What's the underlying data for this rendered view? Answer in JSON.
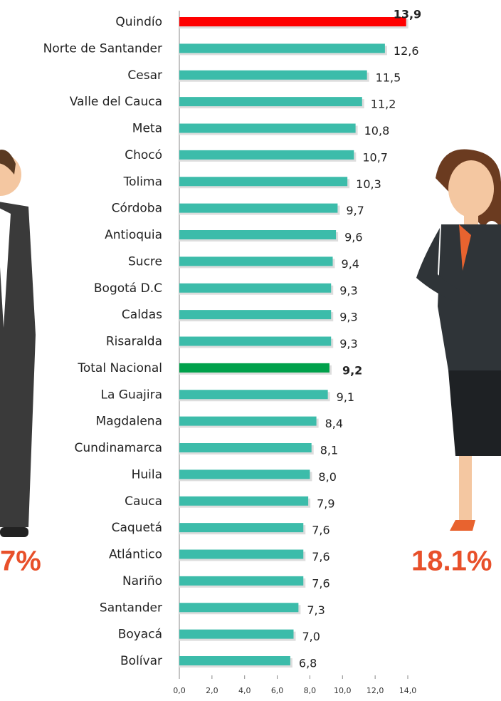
{
  "chart_data": {
    "type": "bar",
    "orientation": "horizontal",
    "categories": [
      "Quindío",
      "Norte de Santander",
      "Cesar",
      "Valle del Cauca",
      "Meta",
      "Chocó",
      "Tolima",
      "Córdoba",
      "Antioquia",
      "Sucre",
      "Bogotá D.C",
      "Caldas",
      "Risaralda",
      "Total Nacional",
      "La Guajira",
      "Magdalena",
      "Cundinamarca",
      "Huila",
      "Cauca",
      "Caquetá",
      "Atlántico",
      "Nariño",
      "Santander",
      "Boyacá",
      "Bolívar"
    ],
    "values": [
      13.9,
      12.6,
      11.5,
      11.2,
      10.8,
      10.7,
      10.3,
      9.7,
      9.6,
      9.4,
      9.3,
      9.3,
      9.3,
      9.2,
      9.1,
      8.4,
      8.1,
      8.0,
      7.9,
      7.6,
      7.6,
      7.6,
      7.3,
      7.0,
      6.8
    ],
    "value_labels": [
      "13,9",
      "12,6",
      "11,5",
      "11,2",
      "10,8",
      "10,7",
      "10,3",
      "9,7",
      "9,6",
      "9,4",
      "9,3",
      "9,3",
      "9,3",
      "9,2",
      "9,1",
      "8,4",
      "8,1",
      "8,0",
      "7,9",
      "7,6",
      "7,6",
      "7,6",
      "7,3",
      "7,0",
      "6,8"
    ],
    "colors": [
      "#ff0000",
      "#3cbcaa",
      "#3cbcaa",
      "#3cbcaa",
      "#3cbcaa",
      "#3cbcaa",
      "#3cbcaa",
      "#3cbcaa",
      "#3cbcaa",
      "#3cbcaa",
      "#3cbcaa",
      "#3cbcaa",
      "#3cbcaa",
      "#00a14b",
      "#3cbcaa",
      "#3cbcaa",
      "#3cbcaa",
      "#3cbcaa",
      "#3cbcaa",
      "#3cbcaa",
      "#3cbcaa",
      "#3cbcaa",
      "#3cbcaa",
      "#3cbcaa",
      "#3cbcaa"
    ],
    "xlim": [
      0,
      14
    ],
    "xticks": [
      {
        "value": 0,
        "label": "0,0"
      },
      {
        "value": 2,
        "label": "2,0"
      },
      {
        "value": 4,
        "label": "4,0"
      },
      {
        "value": 6,
        "label": "6,0"
      },
      {
        "value": 8,
        "label": "8,0"
      },
      {
        "value": 10,
        "label": "10,0"
      },
      {
        "value": 12,
        "label": "12,0"
      },
      {
        "value": 14,
        "label": "14,0"
      }
    ],
    "annotations": [
      "7%",
      "18.1%"
    ]
  }
}
